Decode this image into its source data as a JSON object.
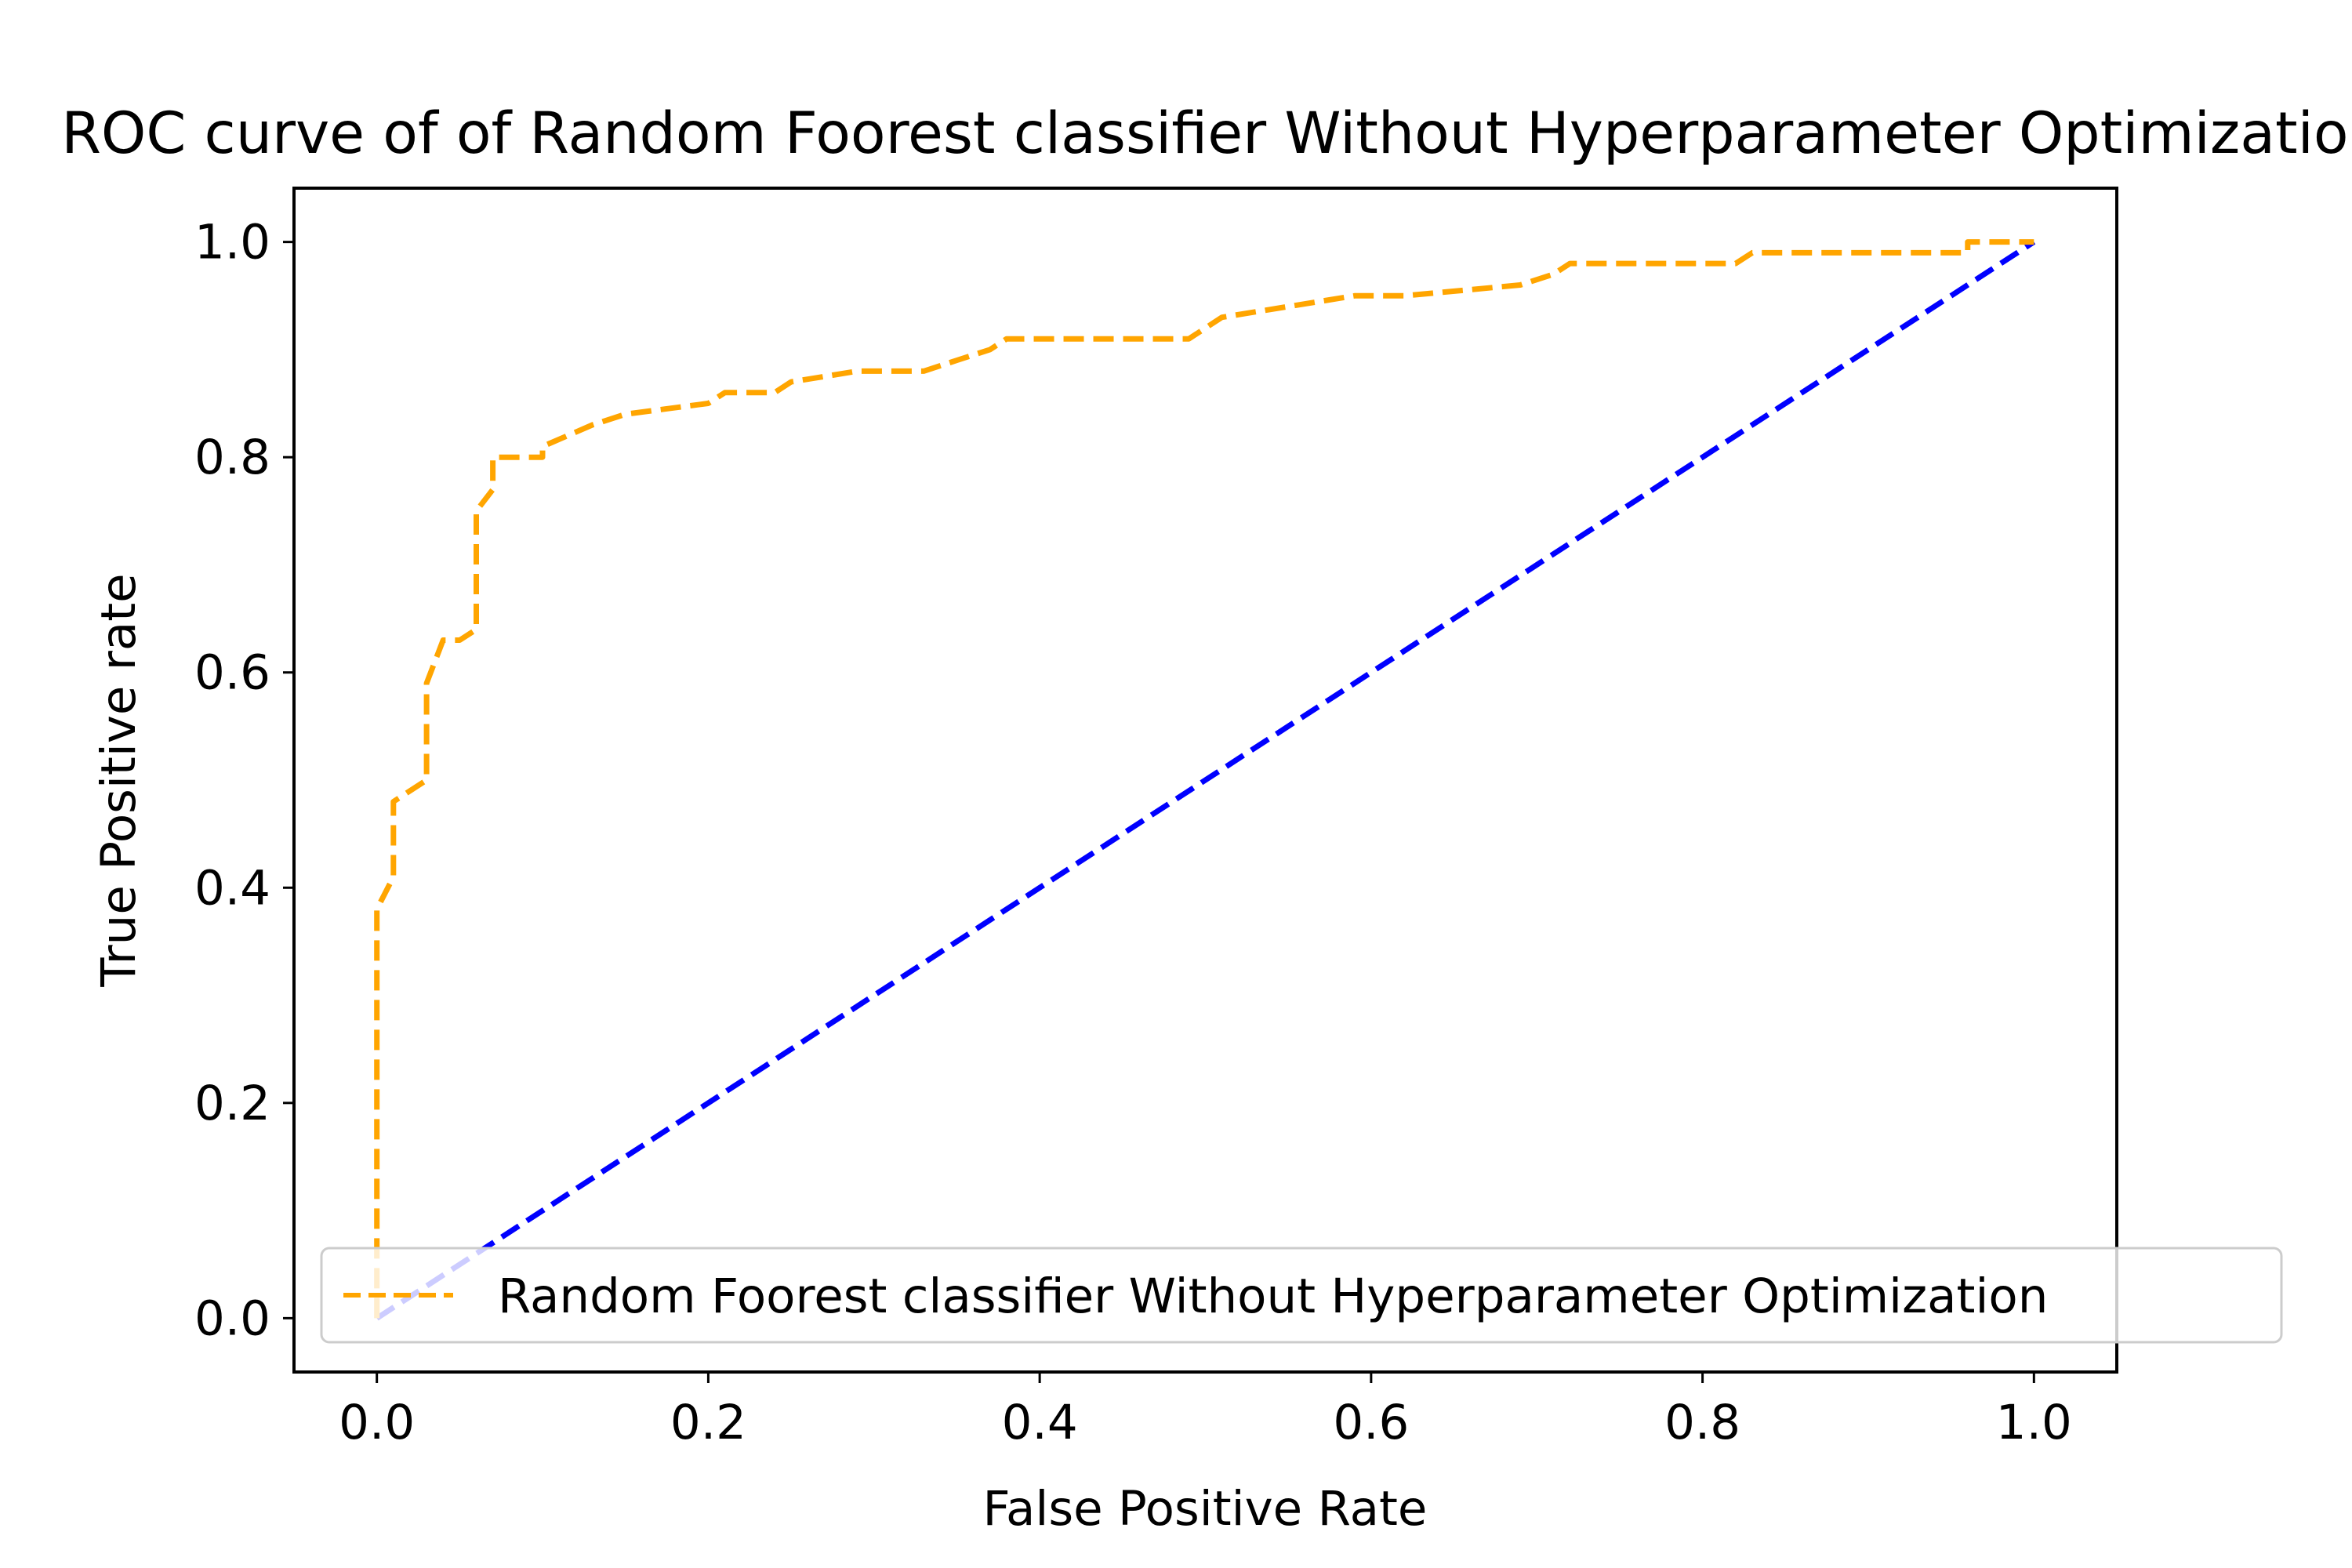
{
  "chart_data": {
    "type": "line",
    "title": "ROC curve of of Random Foorest classifier Without Hyperparameter Optimization",
    "xlabel": "False Positive Rate",
    "ylabel": "True Positive rate",
    "xlim": [
      -0.05,
      1.05
    ],
    "ylim": [
      -0.05,
      1.05
    ],
    "xticks": [
      "0.0",
      "0.2",
      "0.4",
      "0.6",
      "0.8",
      "1.0"
    ],
    "yticks": [
      "0.0",
      "0.2",
      "0.4",
      "0.6",
      "0.8",
      "1.0"
    ],
    "grid": false,
    "legend_position": "lower-right",
    "legend": [
      "Random Foorest classifier Without Hyperparameter Optimization"
    ],
    "series": [
      {
        "name": "Random Foorest classifier Without Hyperparameter Optimization",
        "color": "#FFA500",
        "line_style": "dashed",
        "x": [
          0,
          0,
          0.01,
          0.01,
          0.02,
          0.03,
          0.03,
          0.04,
          0.05,
          0.06,
          0.06,
          0.07,
          0.07,
          0.08,
          0.1,
          0.1,
          0.13,
          0.15,
          0.2,
          0.21,
          0.24,
          0.25,
          0.29,
          0.33,
          0.35,
          0.37,
          0.38,
          0.49,
          0.51,
          0.55,
          0.59,
          0.62,
          0.69,
          0.71,
          0.72,
          0.82,
          0.83,
          0.96,
          0.96,
          0.98,
          1.0
        ],
        "y": [
          0,
          0.38,
          0.41,
          0.48,
          0.49,
          0.5,
          0.59,
          0.63,
          0.63,
          0.64,
          0.75,
          0.77,
          0.8,
          0.8,
          0.8,
          0.81,
          0.83,
          0.84,
          0.85,
          0.86,
          0.86,
          0.87,
          0.88,
          0.88,
          0.89,
          0.9,
          0.91,
          0.91,
          0.93,
          0.94,
          0.95,
          0.95,
          0.96,
          0.97,
          0.98,
          0.98,
          0.99,
          0.99,
          1.0,
          1.0,
          1.0
        ]
      },
      {
        "color": "#0000FF",
        "line_style": "dashed",
        "x": [
          0,
          1
        ],
        "y": [
          0,
          1
        ]
      }
    ]
  }
}
